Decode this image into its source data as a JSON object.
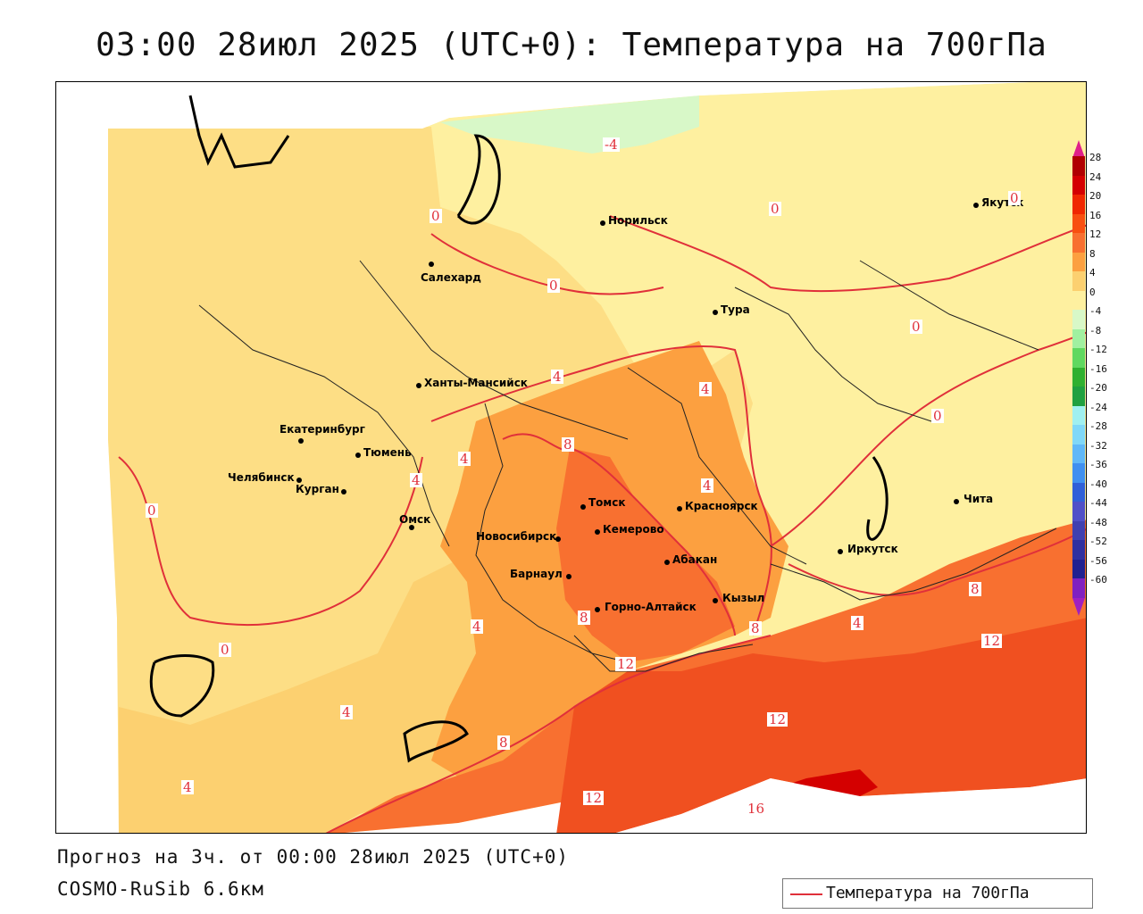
{
  "title": "03:00 28июл 2025 (UTC+0): Температура на 700гПа",
  "footer": {
    "forecast": "Прогноз на 3ч. от 00:00 28июл 2025 (UTC+0)",
    "model": "COSMO-RuSib 6.6км"
  },
  "legend": {
    "label": "Температура на 700гПа",
    "line_color": "#e0303a"
  },
  "colorscale": {
    "labels": [
      "28",
      "24",
      "20",
      "16",
      "12",
      "8",
      "4",
      "0",
      "-4",
      "-8",
      "-12",
      "-16",
      "-20",
      "-24",
      "-28",
      "-32",
      "-36",
      "-40",
      "-44",
      "-48",
      "-52",
      "-56",
      "-60"
    ],
    "colors": [
      "#b00000",
      "#d40000",
      "#f02800",
      "#f85010",
      "#f87030",
      "#fca040",
      "#fcd070",
      "#fef0a0",
      "#d8f8c8",
      "#a0f0a0",
      "#60d860",
      "#30b030",
      "#20a040",
      "#a0f0f0",
      "#80d8f8",
      "#60b8f8",
      "#4090f0",
      "#3060d8",
      "#5050c8",
      "#4040b0",
      "#3030a0",
      "#202090",
      "#8020c0"
    ],
    "arrow_top_color": "#e0208a",
    "arrow_bottom_color": "#a020c0"
  },
  "cities": [
    {
      "name": "Норильск"
    },
    {
      "name": "Салехард"
    },
    {
      "name": "Тура"
    },
    {
      "name": "Якутск"
    },
    {
      "name": "Ханты-Мансийск"
    },
    {
      "name": "Екатеринбург"
    },
    {
      "name": "Тюмень"
    },
    {
      "name": "Челябинск"
    },
    {
      "name": "Курган"
    },
    {
      "name": "Омск"
    },
    {
      "name": "Новосибирск"
    },
    {
      "name": "Томск"
    },
    {
      "name": "Кемерово"
    },
    {
      "name": "Красноярск"
    },
    {
      "name": "Абакан"
    },
    {
      "name": "Барнаул"
    },
    {
      "name": "Горно-Алтайск"
    },
    {
      "name": "Кызыл"
    },
    {
      "name": "Иркутск"
    },
    {
      "name": "Чита"
    }
  ],
  "isoline_labels": [
    "-4",
    "0",
    "0",
    "0",
    "0",
    "0",
    "0",
    "0",
    "0",
    "4",
    "4",
    "4",
    "4",
    "4",
    "4",
    "4",
    "4",
    "4",
    "8",
    "8",
    "8",
    "8",
    "8",
    "12",
    "12",
    "12",
    "12",
    "16"
  ]
}
